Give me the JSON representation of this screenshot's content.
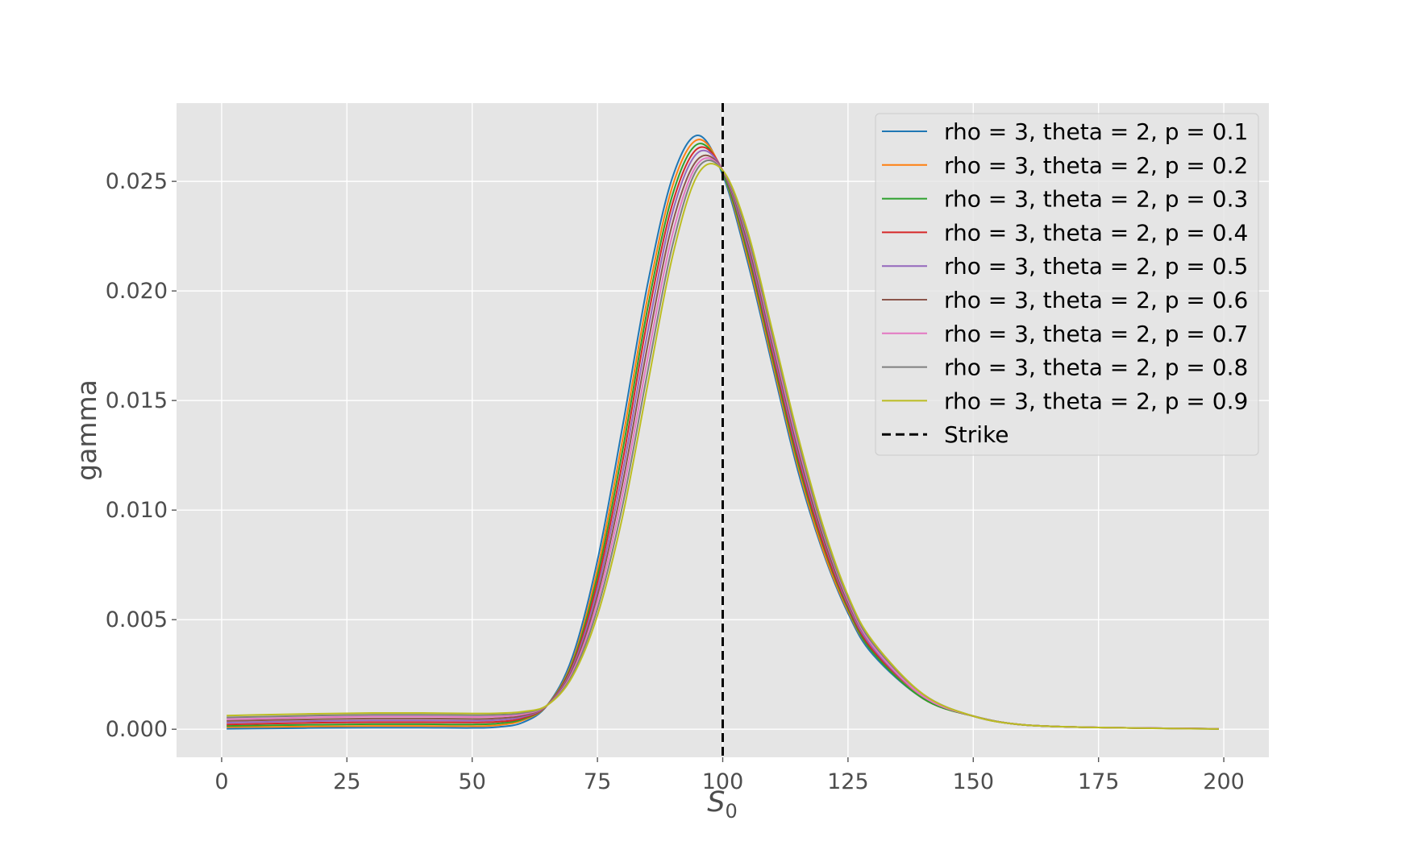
{
  "chart_data": {
    "type": "line",
    "title": "",
    "xlabel": "S",
    "xlabel_subscript": "0",
    "ylabel": "gamma",
    "xlim": [
      -9,
      209
    ],
    "ylim": [
      -0.00128,
      0.02857
    ],
    "xticks": [
      0,
      25,
      50,
      75,
      100,
      125,
      150,
      175,
      200
    ],
    "xtick_labels": [
      "0",
      "25",
      "50",
      "75",
      "100",
      "125",
      "150",
      "175",
      "200"
    ],
    "yticks": [
      0.0,
      0.005,
      0.01,
      0.015,
      0.02,
      0.025
    ],
    "ytick_labels": [
      "0.000",
      "0.005",
      "0.010",
      "0.015",
      "0.020",
      "0.025"
    ],
    "grid": true,
    "legend_position": "top-right",
    "strike": {
      "label": "Strike",
      "x": 100,
      "style": "dashed",
      "color": "#000000"
    },
    "x": [
      1,
      10,
      20,
      30,
      40,
      50,
      55,
      60,
      65,
      70,
      75,
      80,
      85,
      90,
      95,
      100,
      105,
      110,
      115,
      120,
      125,
      130,
      140,
      150,
      160,
      175,
      199
    ],
    "series": [
      {
        "name": "rho = 3, theta = 2, p = 0.1",
        "color": "#1f77b4",
        "values": [
          2e-05,
          4e-05,
          6e-05,
          7e-05,
          7e-05,
          6e-05,
          0.0001,
          0.0003,
          0.0011,
          0.0033,
          0.0077,
          0.0138,
          0.0203,
          0.0252,
          0.0271,
          0.0253,
          0.0213,
          0.0165,
          0.0118,
          0.0081,
          0.0053,
          0.0034,
          0.0014,
          0.0006,
          0.0002,
          8e-05,
          2e-05
        ]
      },
      {
        "name": "rho = 3, theta = 2, p = 0.2",
        "color": "#ff7f0e",
        "values": [
          0.0001,
          0.00011,
          0.00013,
          0.00015,
          0.00015,
          0.00014,
          0.00018,
          0.0004,
          0.0011,
          0.0031,
          0.0073,
          0.0132,
          0.0197,
          0.0248,
          0.0269,
          0.0254,
          0.0215,
          0.0167,
          0.012,
          0.0082,
          0.0054,
          0.0035,
          0.0014,
          0.0006,
          0.0002,
          8e-05,
          2e-05
        ]
      },
      {
        "name": "rho = 3, theta = 2, p = 0.3",
        "color": "#2ca02c",
        "values": [
          0.00015,
          0.00018,
          0.00021,
          0.00023,
          0.00023,
          0.00022,
          0.00026,
          0.00045,
          0.0011,
          0.003,
          0.007,
          0.0127,
          0.0192,
          0.0244,
          0.0267,
          0.0254,
          0.0217,
          0.0169,
          0.0122,
          0.0084,
          0.0055,
          0.0035,
          0.0014,
          0.0006,
          0.0002,
          8e-05,
          2e-05
        ]
      },
      {
        "name": "rho = 3, theta = 2, p = 0.4",
        "color": "#d62728",
        "values": [
          0.00022,
          0.00026,
          0.0003,
          0.00032,
          0.00032,
          0.00031,
          0.00034,
          0.0005,
          0.0011,
          0.0029,
          0.0067,
          0.0122,
          0.0187,
          0.024,
          0.0265,
          0.0255,
          0.0219,
          0.0171,
          0.0124,
          0.0085,
          0.0056,
          0.0036,
          0.0015,
          0.0006,
          0.0002,
          8e-05,
          2e-05
        ]
      },
      {
        "name": "rho = 3, theta = 2, p = 0.5",
        "color": "#9467bd",
        "values": [
          0.0003,
          0.00034,
          0.00038,
          0.0004,
          0.0004,
          0.00039,
          0.00042,
          0.00056,
          0.0011,
          0.0028,
          0.0064,
          0.0117,
          0.0181,
          0.0236,
          0.0263,
          0.0255,
          0.022,
          0.0173,
          0.0126,
          0.0087,
          0.0057,
          0.0037,
          0.0015,
          0.0006,
          0.0002,
          8e-05,
          2e-05
        ]
      },
      {
        "name": "rho = 3, theta = 2, p = 0.6",
        "color": "#8c564b",
        "values": [
          0.00038,
          0.00042,
          0.00046,
          0.00049,
          0.00049,
          0.00047,
          0.0005,
          0.00062,
          0.0011,
          0.0027,
          0.0061,
          0.0112,
          0.0175,
          0.0231,
          0.026,
          0.0255,
          0.0222,
          0.0175,
          0.0128,
          0.0088,
          0.0058,
          0.0038,
          0.0015,
          0.0006,
          0.0002,
          8e-05,
          2e-05
        ]
      },
      {
        "name": "rho = 3, theta = 2, p = 0.7",
        "color": "#e377c2",
        "values": [
          0.00046,
          0.0005,
          0.00055,
          0.00058,
          0.00058,
          0.00056,
          0.00058,
          0.00068,
          0.0011,
          0.0026,
          0.0058,
          0.0107,
          0.0169,
          0.0226,
          0.0258,
          0.0255,
          0.0224,
          0.0177,
          0.013,
          0.009,
          0.0059,
          0.0038,
          0.0015,
          0.0006,
          0.0002,
          8e-05,
          2e-05
        ]
      },
      {
        "name": "rho = 3, theta = 2, p = 0.8",
        "color": "#7f7f7f",
        "values": [
          0.00054,
          0.00058,
          0.00063,
          0.00066,
          0.00066,
          0.00064,
          0.00066,
          0.00074,
          0.0011,
          0.0025,
          0.0055,
          0.0102,
          0.0163,
          0.0221,
          0.0256,
          0.0255,
          0.0225,
          0.0179,
          0.0132,
          0.0091,
          0.006,
          0.0039,
          0.0016,
          0.0006,
          0.0002,
          8e-05,
          1e-05
        ]
      },
      {
        "name": "rho = 3, theta = 2, p = 0.9",
        "color": "#bcbd22",
        "values": [
          0.00062,
          0.00067,
          0.00071,
          0.00074,
          0.00074,
          0.00072,
          0.00073,
          0.0008,
          0.0011,
          0.0024,
          0.0052,
          0.0097,
          0.0157,
          0.0216,
          0.0253,
          0.0255,
          0.0227,
          0.0181,
          0.0134,
          0.0093,
          0.0061,
          0.004,
          0.0016,
          0.0006,
          0.0002,
          8e-05,
          1e-05
        ]
      }
    ]
  }
}
